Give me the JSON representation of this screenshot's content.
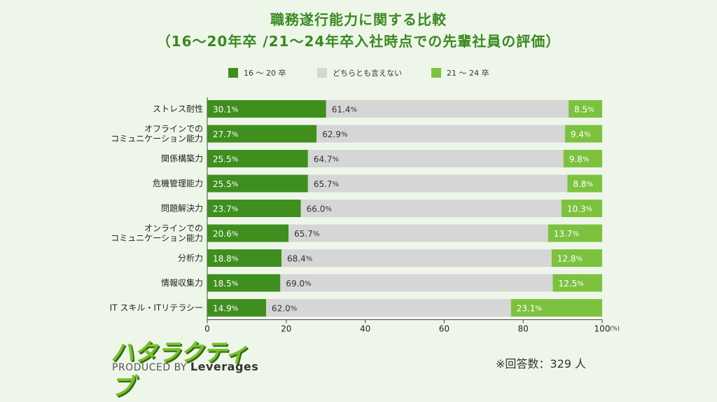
{
  "title_line1": "職務遂行能力に関する比較",
  "title_line2": "（16～20年卒 /21～24年卒入社時点での先輩社員の評価）",
  "footnote": "※回答数：329 人",
  "logo": {
    "text": "ハタラクティブ",
    "produced_by": "PRODUCED BY",
    "brand": "Leverages"
  },
  "colors": {
    "series1": "#3f8f1f",
    "series2": "#d6d6d6",
    "series3": "#7cc23f"
  },
  "chart_data": {
    "type": "bar",
    "orientation": "horizontal",
    "stacked": true,
    "percent_suffix": "%",
    "categories": [
      "ストレス耐性",
      "オフラインでの\nコミュニケーション能力",
      "関係構築力",
      "危機管理能力",
      "問題解決力",
      "オンラインでの\nコミュニケーション能力",
      "分析力",
      "情報収集力",
      "IT スキル・ITリテラシー"
    ],
    "series": [
      {
        "name": "16 ～ 20 卒",
        "values": [
          30.1,
          27.7,
          25.5,
          25.5,
          23.7,
          20.6,
          18.8,
          18.5,
          14.9
        ]
      },
      {
        "name": "どちらとも言えない",
        "values": [
          61.4,
          62.9,
          64.7,
          65.7,
          66.0,
          65.7,
          68.4,
          69.0,
          62.0
        ]
      },
      {
        "name": "21 ～ 24 卒",
        "values": [
          8.5,
          9.4,
          9.8,
          8.8,
          10.3,
          13.7,
          12.8,
          12.5,
          23.1
        ]
      }
    ],
    "xlim": [
      0,
      100
    ],
    "xticks": [
      0,
      20,
      40,
      60,
      80,
      100
    ],
    "x_unit": "(%)",
    "legend_position": "top"
  }
}
